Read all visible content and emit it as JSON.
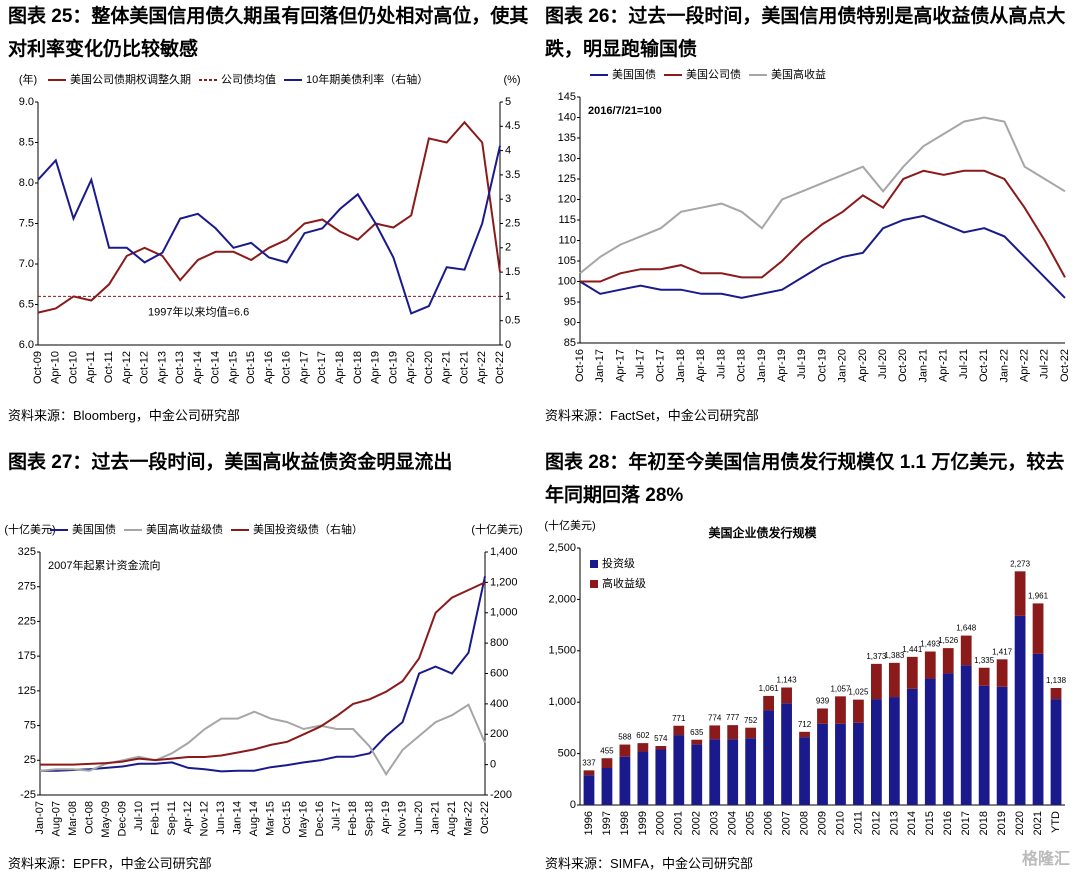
{
  "headings": [
    "图表 25：整体美国信用债久期虽有回落但仍处相对高位，使其对利率变化仍比较敏感",
    "图表 26：过去一段时间，美国信用债特别是高收益债从高点大跌，明显跑输国债",
    "图表 27：过去一段时间，美国高收益债资金明显流出",
    "图表 28：年初至今美国信用债发行规模仅 1.1 万亿美元，较去年同期回落 28%"
  ],
  "sources": [
    "资料来源：Bloomberg，中金公司研究部",
    "资料来源：FactSet，中金公司研究部",
    "资料来源：EPFR，中金公司研究部",
    "资料来源：SIMFA，中金公司研究部"
  ],
  "watermark": "格隆汇",
  "chart_data": [
    {
      "type": "line",
      "ylabel": "(年)",
      "y2label": "(%)",
      "grid": false,
      "legend_position": "top",
      "categories": [
        "Oct-09",
        "Apr-10",
        "Oct-10",
        "Apr-11",
        "Oct-11",
        "Apr-12",
        "Oct-12",
        "Apr-13",
        "Oct-13",
        "Apr-14",
        "Oct-14",
        "Apr-15",
        "Oct-15",
        "Apr-16",
        "Oct-16",
        "Apr-17",
        "Oct-17",
        "Apr-18",
        "Oct-18",
        "Apr-19",
        "Oct-19",
        "Apr-20",
        "Oct-20",
        "Apr-21",
        "Oct-21",
        "Apr-22",
        "Oct-22"
      ],
      "series": [
        {
          "name": "美国公司债期权调整久期",
          "color": "#8b1a1a",
          "values": [
            6.4,
            6.45,
            6.6,
            6.55,
            6.75,
            7.1,
            7.2,
            7.1,
            6.8,
            7.05,
            7.15,
            7.15,
            7.05,
            7.2,
            7.3,
            7.5,
            7.55,
            7.4,
            7.3,
            7.5,
            7.45,
            7.6,
            8.55,
            8.5,
            8.75,
            8.5,
            6.9
          ]
        },
        {
          "name": "10年期美债利率（右轴）",
          "color": "#1a1a8c",
          "axis": "y2",
          "values": [
            3.4,
            3.8,
            2.6,
            3.4,
            2.0,
            2.0,
            1.7,
            1.9,
            2.6,
            2.7,
            2.4,
            2.0,
            2.1,
            1.8,
            1.7,
            2.3,
            2.4,
            2.8,
            3.1,
            2.5,
            1.8,
            0.65,
            0.8,
            1.6,
            1.55,
            2.5,
            4.1
          ]
        }
      ],
      "reference_line": {
        "name": "公司债均值",
        "value": 6.6,
        "color": "#8b1a1a",
        "annotation": "1997年以来均值=6.6"
      },
      "ylim": [
        6.0,
        9.0
      ],
      "yticks": [
        {
          "value": 6,
          "label": "6.0"
        },
        6.5,
        {
          "value": 7,
          "label": "7.0"
        },
        7.5,
        {
          "value": 8,
          "label": "8.0"
        },
        8.5,
        {
          "value": 9,
          "label": "9.0"
        }
      ],
      "y2lim": [
        0,
        5
      ],
      "y2ticks": [
        0,
        0.5,
        1,
        1.5,
        2,
        2.5,
        3,
        3.5,
        4,
        4.5,
        5
      ]
    },
    {
      "type": "line",
      "grid": false,
      "legend_position": "top",
      "annotation": "2016/7/21=100",
      "categories": [
        "Oct-16",
        "Jan-17",
        "Apr-17",
        "Jul-17",
        "Oct-17",
        "Jan-18",
        "Apr-18",
        "Jul-18",
        "Oct-18",
        "Jan-19",
        "Apr-19",
        "Jul-19",
        "Oct-19",
        "Jan-20",
        "Apr-20",
        "Jul-20",
        "Oct-20",
        "Jan-21",
        "Apr-21",
        "Jul-21",
        "Oct-21",
        "Jan-22",
        "Apr-22",
        "Jul-22",
        "Oct-22"
      ],
      "series": [
        {
          "name": "美国国债",
          "color": "#1a1a8c",
          "values": [
            100,
            97,
            98,
            99,
            98,
            98,
            97,
            97,
            96,
            97,
            98,
            101,
            104,
            106,
            107,
            113,
            115,
            116,
            114,
            112,
            113,
            111,
            106,
            101,
            96
          ]
        },
        {
          "name": "美国公司债",
          "color": "#8b1a1a",
          "values": [
            100,
            100,
            102,
            103,
            103,
            104,
            102,
            102,
            101,
            101,
            105,
            110,
            114,
            117,
            121,
            118,
            125,
            127,
            126,
            127,
            127,
            125,
            118,
            110,
            101
          ]
        },
        {
          "name": "美国高收益",
          "color": "#a6a6a6",
          "values": [
            102,
            106,
            109,
            111,
            113,
            117,
            118,
            119,
            117,
            113,
            120,
            122,
            124,
            126,
            128,
            122,
            128,
            133,
            136,
            139,
            140,
            139,
            128,
            125,
            122
          ]
        }
      ],
      "ylim": [
        85,
        145
      ],
      "yticks": [
        85,
        90,
        95,
        100,
        105,
        110,
        115,
        120,
        125,
        130,
        135,
        140,
        145
      ]
    },
    {
      "type": "line",
      "ylabel": "(十亿美元)",
      "y2label": "(十亿美元)",
      "grid": false,
      "legend_position": "top",
      "annotation": "2007年起累计资金流向",
      "categories": [
        "Jan-07",
        "Aug-07",
        "Mar-08",
        "Oct-08",
        "May-09",
        "Dec-09",
        "Jul-10",
        "Feb-11",
        "Sep-11",
        "Apr-12",
        "Nov-12",
        "Jun-13",
        "Jan-14",
        "Aug-14",
        "Mar-15",
        "Oct-15",
        "May-16",
        "Dec-16",
        "Jul-17",
        "Feb-18",
        "Sep-18",
        "Apr-19",
        "Nov-19",
        "Jun-20",
        "Jan-21",
        "Aug-21",
        "Mar-22",
        "Oct-22"
      ],
      "series": [
        {
          "name": "美国国债",
          "color": "#1a1a8c",
          "values": [
            10,
            10,
            11,
            12,
            14,
            16,
            20,
            20,
            22,
            14,
            12,
            9,
            10,
            10,
            15,
            18,
            22,
            25,
            30,
            30,
            35,
            60,
            80,
            150,
            160,
            150,
            180,
            290
          ]
        },
        {
          "name": "美国高收益级债",
          "color": "#a6a6a6",
          "values": [
            10,
            12,
            12,
            10,
            20,
            25,
            30,
            25,
            35,
            50,
            70,
            85,
            85,
            95,
            85,
            80,
            70,
            75,
            70,
            70,
            45,
            5,
            40,
            60,
            80,
            90,
            105,
            50
          ]
        },
        {
          "name": "美国投资级债（右轴）",
          "color": "#8b1a1a",
          "axis": "y2",
          "values": [
            0,
            0,
            0,
            5,
            10,
            20,
            40,
            30,
            40,
            50,
            50,
            60,
            80,
            100,
            130,
            150,
            200,
            250,
            320,
            400,
            430,
            480,
            550,
            700,
            1000,
            1100,
            1150,
            1200
          ]
        }
      ],
      "ylim": [
        -25,
        325
      ],
      "yticks": [
        -25,
        25,
        75,
        125,
        175,
        225,
        275,
        325
      ],
      "y2lim": [
        -200,
        1400
      ],
      "y2ticks": [
        -200,
        0,
        200,
        400,
        600,
        800,
        {
          "value": 1000,
          "label": "1,000"
        },
        {
          "value": 1200,
          "label": "1,200"
        },
        {
          "value": 1400,
          "label": "1,400"
        }
      ]
    },
    {
      "type": "stacked_bar",
      "title": "美国企业债发行规模",
      "ylabel": "(十亿美元)",
      "grid": false,
      "legend_position": "upper-left",
      "categories": [
        "1996",
        "1997",
        "1998",
        "1999",
        "2000",
        "2001",
        "2002",
        "2003",
        "2004",
        "2005",
        "2006",
        "2007",
        "2008",
        "2009",
        "2010",
        "2011",
        "2012",
        "2013",
        "2014",
        "2015",
        "2016",
        "2017",
        "2018",
        "2019",
        "2020",
        "2021",
        "YTD"
      ],
      "series": [
        {
          "name": "投资级",
          "color": "#1a1a8c",
          "values": [
            290,
            360,
            470,
            520,
            540,
            680,
            590,
            640,
            640,
            650,
            920,
            990,
            660,
            790,
            790,
            800,
            1030,
            1050,
            1130,
            1230,
            1280,
            1360,
            1160,
            1150,
            1840,
            1470,
            1030
          ]
        },
        {
          "name": "高收益级",
          "color": "#8b1a1a",
          "values": [
            47,
            95,
            118,
            82,
            34,
            91,
            45,
            134,
            137,
            102,
            141,
            153,
            52,
            149,
            267,
            225,
            343,
            333,
            311,
            263,
            246,
            288,
            175,
            267,
            433,
            491,
            108
          ]
        }
      ],
      "total_labels": [
        "337",
        "455",
        "588",
        "602",
        "574",
        "771",
        "635",
        "774",
        "777",
        "752",
        "1,061",
        "1,143",
        "712",
        "939",
        "1,057",
        "1,025",
        "1,373",
        "1,383",
        "1,441",
        "1,493",
        "1,526",
        "1,648",
        "1,335",
        "1,417",
        "2,273",
        "1,961",
        "1,138"
      ],
      "ylim": [
        0,
        2500
      ],
      "yticks": [
        0,
        500,
        {
          "value": 1000,
          "label": "1,000"
        },
        {
          "value": 1500,
          "label": "1,500"
        },
        {
          "value": 2000,
          "label": "2,000"
        },
        {
          "value": 2500,
          "label": "2,500"
        }
      ]
    }
  ]
}
